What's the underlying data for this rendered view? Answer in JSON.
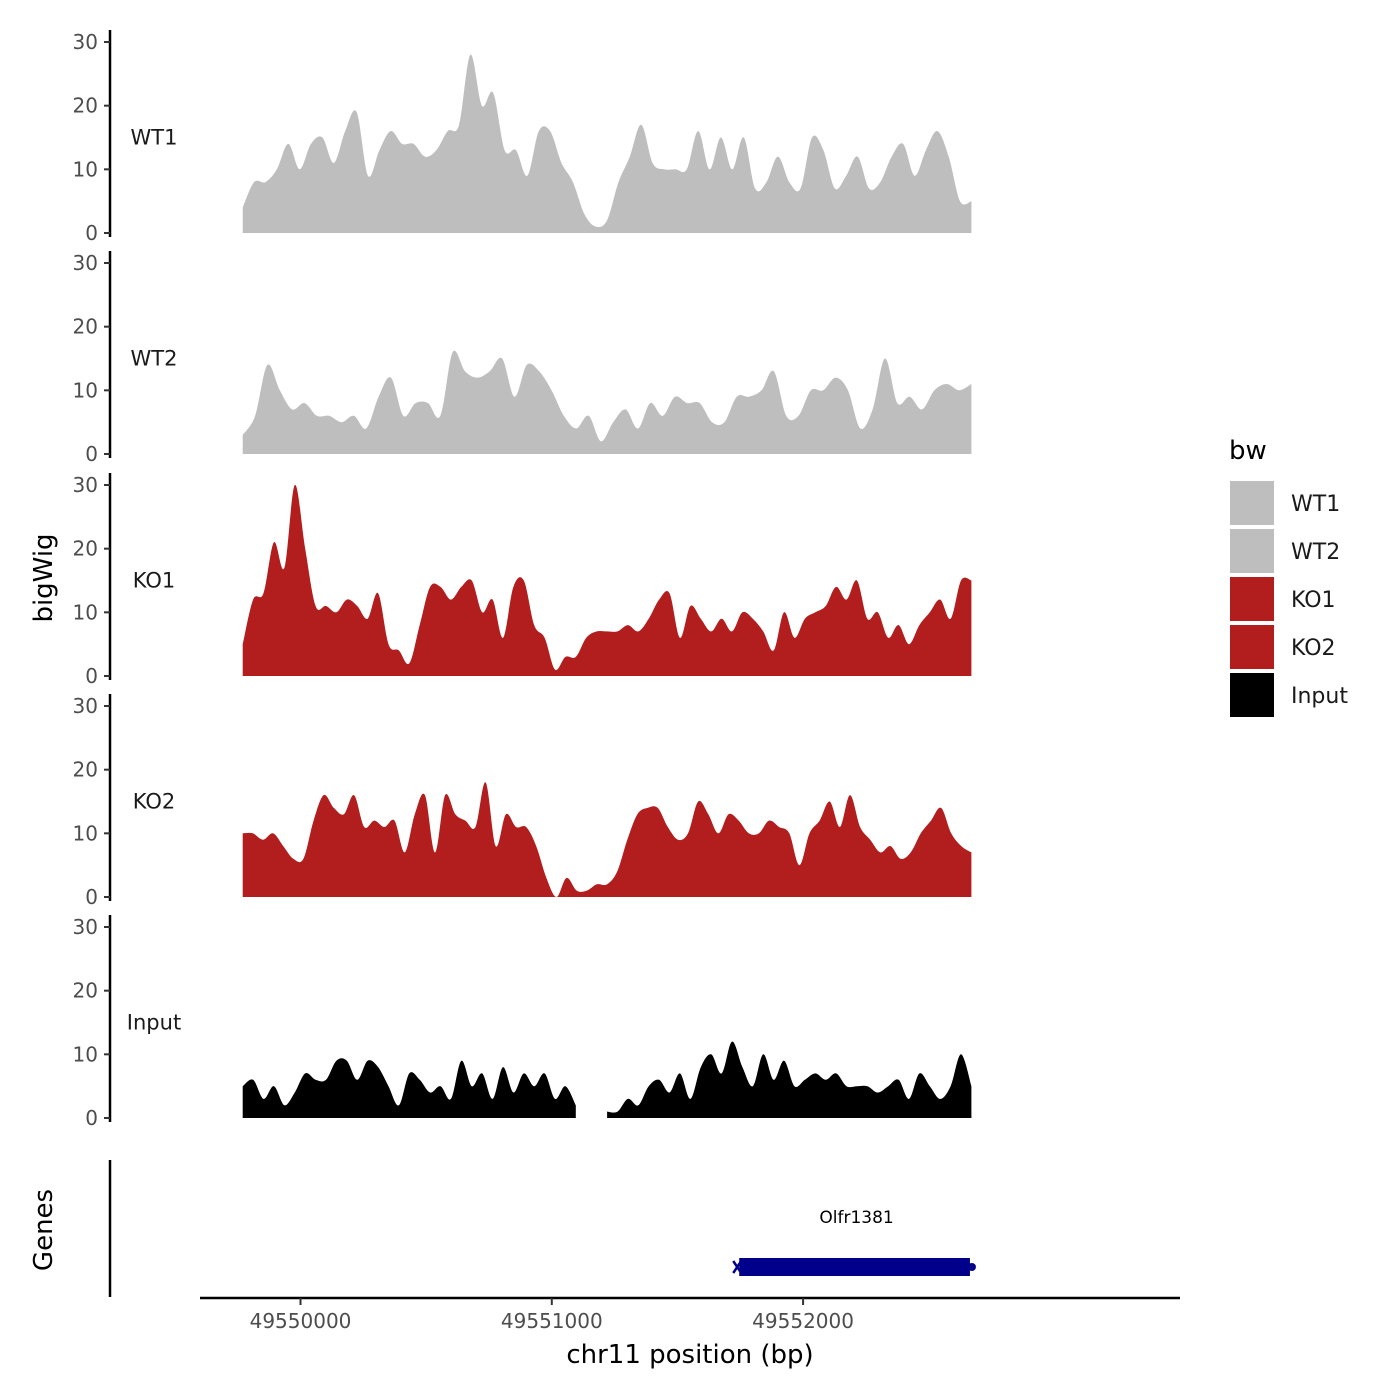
{
  "chart_data": {
    "type": "area",
    "ylabel": "bigWig",
    "xlabel": "chr11 position (bp)",
    "ylim": [
      0,
      30
    ],
    "yticks": [
      0,
      10,
      20,
      30
    ],
    "xlim": [
      49549600,
      49553500
    ],
    "xticks": [
      49550000,
      49551000,
      49552000
    ],
    "x_start": 49549770,
    "x_end": 49552670,
    "legend": {
      "title": "bw",
      "position": "right",
      "entries": [
        {
          "label": "WT1",
          "color": "#bebebe"
        },
        {
          "label": "WT2",
          "color": "#bebebe"
        },
        {
          "label": "KO1",
          "color": "#b21e1e"
        },
        {
          "label": "KO2",
          "color": "#b21e1e"
        },
        {
          "label": "Input",
          "color": "#000000"
        }
      ]
    },
    "series": [
      {
        "name": "WT1",
        "color": "#bebebe",
        "values": [
          4,
          8,
          8,
          10,
          14,
          10,
          14,
          15,
          11,
          16,
          19,
          9,
          13,
          16,
          14,
          14,
          12,
          13,
          16,
          17,
          28,
          20,
          22,
          13,
          13,
          9,
          16,
          16,
          11,
          8,
          3,
          1,
          2,
          8,
          12,
          17,
          11,
          10,
          10,
          10,
          16,
          10,
          15,
          10,
          15,
          7,
          8,
          12,
          8,
          7,
          15,
          13,
          7,
          9,
          12,
          7,
          8,
          12,
          14,
          9,
          13,
          16,
          12,
          5,
          5
        ]
      },
      {
        "name": "WT2",
        "color": "#bebebe",
        "values": [
          3,
          6,
          14,
          10,
          7,
          8,
          6,
          6,
          5,
          6,
          4,
          9,
          12,
          6,
          8,
          8,
          6,
          16,
          13,
          12,
          13,
          15,
          9,
          14,
          13,
          10,
          6,
          4,
          6,
          2,
          5,
          7,
          4,
          8,
          6,
          9,
          8,
          8,
          5,
          5,
          9,
          9,
          10,
          13,
          6,
          6,
          10,
          10,
          12,
          10,
          4,
          7,
          15,
          8,
          9,
          7,
          10,
          11,
          10,
          11
        ]
      },
      {
        "name": "KO1",
        "color": "#b21e1e",
        "values": [
          5,
          12,
          13,
          21,
          17,
          30,
          20,
          11,
          11,
          10,
          12,
          11,
          9,
          13,
          5,
          4,
          2,
          8,
          14,
          14,
          12,
          14,
          15,
          10,
          12,
          6,
          14,
          15,
          8,
          6,
          1,
          3,
          3,
          6,
          7,
          7,
          7,
          8,
          7,
          9,
          12,
          13,
          6,
          11,
          9,
          7,
          9,
          7,
          10,
          9,
          7,
          4,
          10,
          6,
          9,
          10,
          11,
          14,
          12,
          15,
          9,
          10,
          6,
          8,
          5,
          8,
          10,
          12,
          9,
          15,
          15
        ]
      },
      {
        "name": "KO2",
        "color": "#b21e1e",
        "values": [
          10,
          10,
          9,
          10,
          8,
          6,
          6,
          12,
          16,
          14,
          13,
          16,
          11,
          12,
          11,
          12,
          7,
          13,
          16,
          7,
          16,
          13,
          12,
          11,
          18,
          8,
          13,
          11,
          11,
          8,
          3,
          0,
          3,
          1,
          1,
          2,
          2,
          4,
          9,
          13,
          14,
          14,
          11,
          9,
          10,
          15,
          13,
          10,
          13,
          12,
          10,
          10,
          12,
          11,
          10,
          5,
          10,
          12,
          15,
          11,
          16,
          11,
          9,
          7,
          8,
          6,
          7,
          10,
          12,
          14,
          10,
          8,
          7
        ]
      },
      {
        "name": "Input",
        "color": "#000000",
        "values": [
          5,
          6,
          3,
          5,
          2,
          4,
          7,
          6,
          6,
          9,
          9,
          6,
          9,
          8,
          5,
          2,
          7,
          6,
          4,
          5,
          3,
          9,
          5,
          7,
          3,
          8,
          4,
          7,
          5,
          7,
          3,
          5,
          2,
          null,
          null,
          1,
          1,
          3,
          2,
          5,
          6,
          4,
          7,
          3,
          8,
          10,
          7,
          12,
          8,
          5,
          10,
          6,
          9,
          5,
          6,
          7,
          6,
          7,
          5,
          5,
          5,
          4,
          5,
          6,
          3,
          7,
          5,
          3,
          5,
          10,
          5
        ]
      }
    ],
    "genes": [
      {
        "name": "Olfr1381",
        "start": 49551730,
        "end": 49552680,
        "strand": "-",
        "color": "#00008b"
      }
    ],
    "genes_label": "Genes"
  }
}
